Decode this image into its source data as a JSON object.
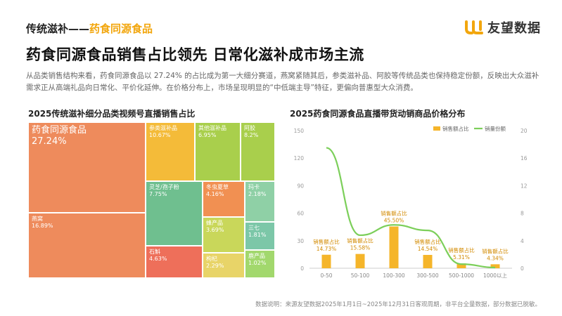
{
  "header": {
    "kicker_prefix": "传统滋补——",
    "kicker_accent": "药食同源食品",
    "brand": "友望数据"
  },
  "title": "药食同源食品销售占比领先 日常化滋补成市场主流",
  "intro": "从品类销售结构来看，药食同源食品以 27.24% 的占比成为第一大细分赛道，燕窝紧随其后，参类滋补品、阿胶等传统品类也保持稳定份额，反映出大众滋补需求正从高端礼品向日常化、平价化延伸。在价格分布上，市场呈现明显的“中低端主导”特征，更偏向普惠型大众消费。",
  "footnote": "数据说明：来源友望数据2025年1月1日~2025年12月31日客观周期，非平台全量数据，部分数据已脱敏。",
  "colors": {
    "accent": "#f2a60d",
    "bar": "#f5b52a",
    "line": "#7ccf5a"
  },
  "chart_data": [
    {
      "type": "treemap",
      "title": "2025传统滋补细分品类视频号直播销售占比",
      "items": [
        {
          "name": "药食同源食品",
          "value": 27.24,
          "label": "27.24%",
          "color": "#ee8b5c"
        },
        {
          "name": "燕窝",
          "value": 16.89,
          "label": "16.89%",
          "color": "#ee8b5c"
        },
        {
          "name": "参类滋补品",
          "value": 10.67,
          "label": "10.67%",
          "color": "#f4bb39"
        },
        {
          "name": "其他滋补品",
          "value": 6.95,
          "label": "6.95%",
          "color": "#a9cf4c"
        },
        {
          "name": "阿胶",
          "value": 8.2,
          "label": "8.2%",
          "color": "#a9cf4c"
        },
        {
          "name": "灵芝/孢子粉",
          "value": 7.75,
          "label": "7.75%",
          "color": "#6fbf8f"
        },
        {
          "name": "冬虫夏草",
          "value": 4.16,
          "label": "4.16%",
          "color": "#f19052"
        },
        {
          "name": "石斛",
          "value": 4.63,
          "label": "4.63%",
          "color": "#ee6f5a"
        },
        {
          "name": "蜂产品",
          "value": 3.69,
          "label": "3.69%",
          "color": "#c9d75a"
        },
        {
          "name": "枸杞",
          "value": 2.29,
          "label": "2.29%",
          "color": "#e8d468"
        },
        {
          "name": "玛卡",
          "value": 2.18,
          "label": "2.18%",
          "color": "#8fd0a6"
        },
        {
          "name": "三七",
          "value": 1.81,
          "label": "1.81%",
          "color": "#7cc7a8"
        },
        {
          "name": "鹿产品",
          "value": 1.02,
          "label": "1.02%",
          "color": "#a2d86d"
        }
      ]
    },
    {
      "type": "bar",
      "title": "2025药食同源食品直播带货动销商品价格分布",
      "categories": [
        "0-50",
        "50-100",
        "100-300",
        "300-500",
        "500-1000",
        "1000以上"
      ],
      "series": [
        {
          "name": "销售额占比",
          "kind": "bar",
          "axis": "left",
          "values": [
            14.73,
            15.58,
            45.5,
            14.54,
            5.31,
            4.34
          ],
          "label_prefix": "销售额占比",
          "labels": [
            "14.73%",
            "15.58%",
            "45.50%",
            "14.54%",
            "5.31%",
            "4.34%"
          ],
          "color": "#f5b52a"
        },
        {
          "name": "销量份额",
          "kind": "line",
          "axis": "right",
          "values": [
            17.5,
            4.8,
            6.3,
            5.5,
            0.6,
            0.1
          ],
          "color": "#7ccf5a"
        }
      ],
      "y_left": {
        "ticks": [
          "0",
          "30",
          "60",
          "90",
          "120",
          "150"
        ],
        "range": [
          0,
          150
        ]
      },
      "y_right": {
        "ticks": [
          "0",
          "4",
          "8",
          "12",
          "16",
          "20"
        ],
        "range": [
          0,
          20
        ]
      },
      "legend": "top-right",
      "grid": false
    }
  ]
}
